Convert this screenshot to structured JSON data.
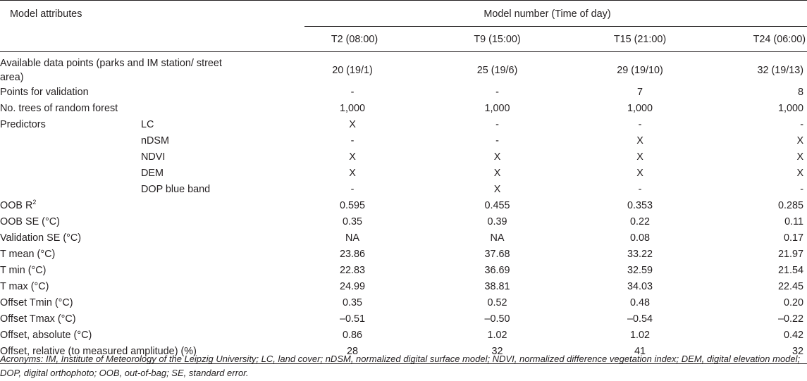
{
  "table": {
    "header": {
      "attributes_label": "Model attributes",
      "model_number_label": "Model number (Time of day)",
      "columns": [
        "T2 (08:00)",
        "T9 (15:00)",
        "T15 (21:00)",
        "T24 (06:00)"
      ]
    },
    "rows": [
      {
        "label": "Available data points (parks and IM station/ street area)",
        "sub": "",
        "values": [
          "20 (19/1)",
          "25 (19/6)",
          "29 (19/10)",
          "32 (19/13)"
        ]
      },
      {
        "label": "Points for validation",
        "sub": "",
        "values": [
          "-",
          "-",
          "7",
          "8"
        ]
      },
      {
        "label": "No. trees of random forest",
        "sub": "",
        "values": [
          "1,000",
          "1,000",
          "1,000",
          "1,000"
        ]
      },
      {
        "label": "Predictors",
        "sub": "LC",
        "values": [
          "X",
          "-",
          "-",
          "-"
        ]
      },
      {
        "label": "",
        "sub": "nDSM",
        "values": [
          "-",
          "-",
          "X",
          "X"
        ]
      },
      {
        "label": "",
        "sub": "NDVI",
        "values": [
          "X",
          "X",
          "X",
          "X"
        ]
      },
      {
        "label": "",
        "sub": "DEM",
        "values": [
          "X",
          "X",
          "X",
          "X"
        ]
      },
      {
        "label": "",
        "sub": "DOP blue band",
        "values": [
          "-",
          "X",
          "-",
          "-"
        ]
      },
      {
        "label": "OOB R",
        "label_sup": "2",
        "sub": "",
        "values": [
          "0.595",
          "0.455",
          "0.353",
          "0.285"
        ]
      },
      {
        "label": "OOB SE (°C)",
        "sub": "",
        "values": [
          "0.35",
          "0.39",
          "0.22",
          "0.11"
        ]
      },
      {
        "label": "Validation SE (°C)",
        "sub": "",
        "values": [
          "NA",
          "NA",
          "0.08",
          "0.17"
        ]
      },
      {
        "label": "T mean (°C)",
        "sub": "",
        "values": [
          "23.86",
          "37.68",
          "33.22",
          "21.97"
        ]
      },
      {
        "label": "T min (°C)",
        "sub": "",
        "values": [
          "22.83",
          "36.69",
          "32.59",
          "21.54"
        ]
      },
      {
        "label": "T max (°C)",
        "sub": "",
        "values": [
          "24.99",
          "38.81",
          "34.03",
          "22.45"
        ]
      },
      {
        "label": "Offset Tmin (°C)",
        "sub": "",
        "values": [
          "0.35",
          "0.52",
          "0.48",
          "0.20"
        ]
      },
      {
        "label": "Offset Tmax (°C)",
        "sub": "",
        "values": [
          "–0.51",
          "–0.50",
          "–0.54",
          "–0.22"
        ]
      },
      {
        "label": "Offset, absolute (°C)",
        "sub": "",
        "values": [
          "0.86",
          "1.02",
          "1.02",
          "0.42"
        ]
      },
      {
        "label": "Offset, relative (to measured amplitude) (%)",
        "sub": "",
        "values": [
          "28",
          "32",
          "41",
          "32"
        ]
      }
    ]
  },
  "footnote": "Acronyms: IM, Institute of Meteorology of the Leipzig University; LC, land cover; nDSM, normalized digital surface model; NDVI, normalized difference vegetation index; DEM, digital elevation model; DOP, digital orthophoto; OOB, out-of-bag; SE, standard error."
}
